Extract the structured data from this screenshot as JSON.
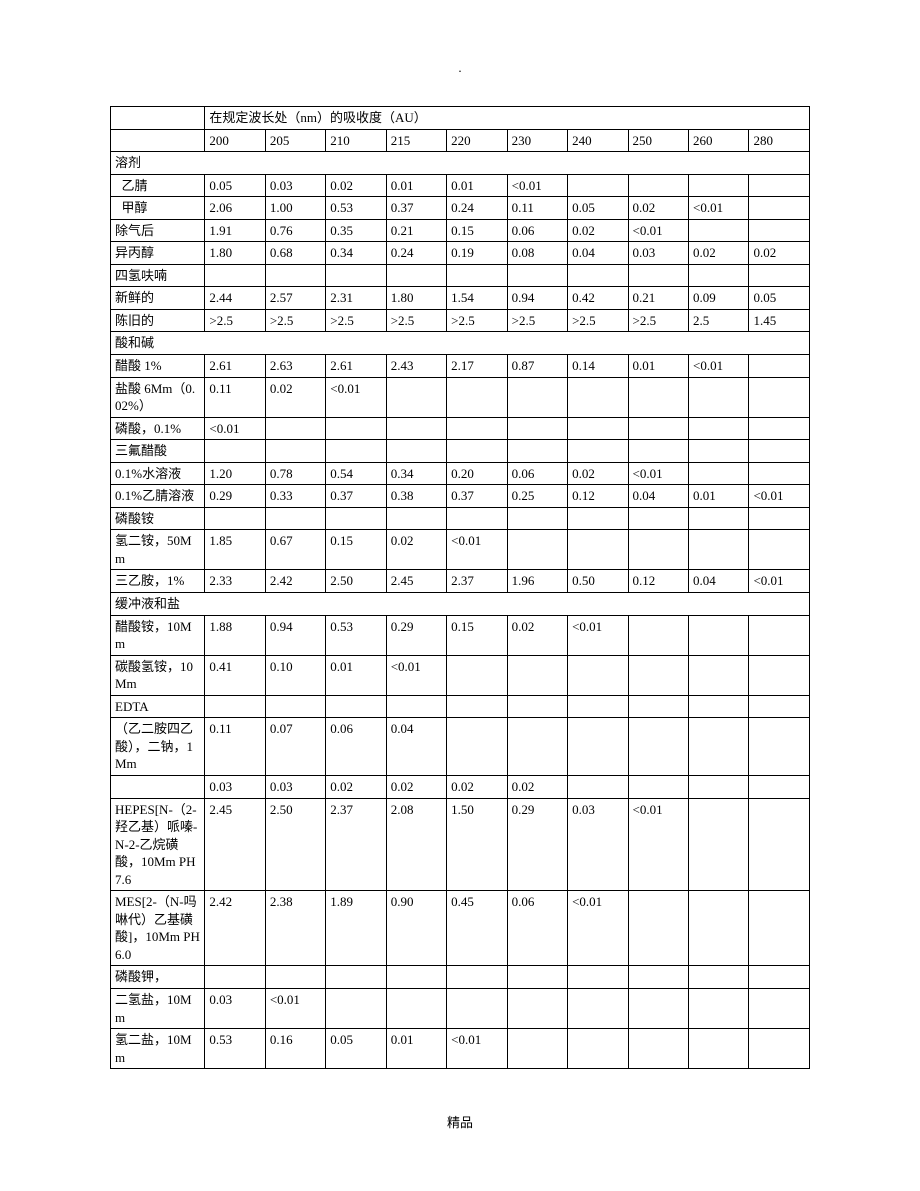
{
  "page": {
    "top_mark": ".",
    "footer": "精品"
  },
  "table": {
    "header_title": "在规定波长处（nm）的吸收度（AU）",
    "columns": [
      "200",
      "205",
      "210",
      "215",
      "220",
      "230",
      "240",
      "250",
      "260",
      "280"
    ],
    "rows": [
      {
        "type": "section",
        "label": "溶剂"
      },
      {
        "label": "乙腈",
        "indent": true,
        "cells": [
          "0.05",
          "0.03",
          "0.02",
          "0.01",
          "0.01",
          "<0.01",
          "",
          "",
          "",
          ""
        ]
      },
      {
        "label": "甲醇",
        "indent": true,
        "cells": [
          "2.06",
          "1.00",
          "0.53",
          "0.37",
          "0.24",
          "0.11",
          "0.05",
          "0.02",
          "<0.01",
          ""
        ]
      },
      {
        "label": "除气后",
        "cells": [
          "1.91",
          "0.76",
          "0.35",
          "0.21",
          "0.15",
          "0.06",
          "0.02",
          "<0.01",
          "",
          ""
        ]
      },
      {
        "label": "异丙醇",
        "cells": [
          "1.80",
          "0.68",
          "0.34",
          "0.24",
          "0.19",
          "0.08",
          "0.04",
          "0.03",
          "0.02",
          "0.02"
        ]
      },
      {
        "label": "四氢呋喃",
        "cells": [
          "",
          "",
          "",
          "",
          "",
          "",
          "",
          "",
          "",
          ""
        ]
      },
      {
        "label": "新鲜的",
        "cells": [
          "2.44",
          "2.57",
          "2.31",
          "1.80",
          "1.54",
          "0.94",
          "0.42",
          "0.21",
          "0.09",
          "0.05"
        ]
      },
      {
        "label": "陈旧的",
        "cells": [
          ">2.5",
          ">2.5",
          ">2.5",
          ">2.5",
          ">2.5",
          ">2.5",
          ">2.5",
          ">2.5",
          "2.5",
          "1.45"
        ]
      },
      {
        "type": "section",
        "label": "酸和碱"
      },
      {
        "label": "醋酸 1%",
        "cells": [
          "2.61",
          "2.63",
          "2.61",
          "2.43",
          "2.17",
          "0.87",
          "0.14",
          "0.01",
          "<0.01",
          ""
        ]
      },
      {
        "label": "盐酸 6Mm（0.02%）",
        "cells": [
          "0.11",
          "0.02",
          "<0.01",
          "",
          "",
          "",
          "",
          "",
          "",
          ""
        ]
      },
      {
        "label": "磷酸，0.1%",
        "cells": [
          "<0.01",
          "",
          "",
          "",
          "",
          "",
          "",
          "",
          "",
          ""
        ]
      },
      {
        "label": "三氟醋酸",
        "cells": [
          "",
          "",
          "",
          "",
          "",
          "",
          "",
          "",
          "",
          ""
        ]
      },
      {
        "label": "0.1%水溶液",
        "cells": [
          "1.20",
          "0.78",
          "0.54",
          "0.34",
          "0.20",
          "0.06",
          "0.02",
          "<0.01",
          "",
          ""
        ]
      },
      {
        "label": "0.1%乙腈溶液",
        "cells": [
          "0.29",
          "0.33",
          "0.37",
          "0.38",
          "0.37",
          "0.25",
          "0.12",
          "0.04",
          "0.01",
          "<0.01"
        ]
      },
      {
        "label": "磷酸铵",
        "cells": [
          "",
          "",
          "",
          "",
          "",
          "",
          "",
          "",
          "",
          ""
        ]
      },
      {
        "label": "氢二铵，50Mm",
        "cells": [
          "1.85",
          "0.67",
          "0.15",
          "0.02",
          "<0.01",
          "",
          "",
          "",
          "",
          ""
        ]
      },
      {
        "label": "三乙胺，1%",
        "cells": [
          "2.33",
          "2.42",
          "2.50",
          "2.45",
          "2.37",
          "1.96",
          "0.50",
          "0.12",
          "0.04",
          "<0.01"
        ]
      },
      {
        "type": "section",
        "label": "缓冲液和盐"
      },
      {
        "label": "醋酸铵，10Mm",
        "cells": [
          "1.88",
          "0.94",
          "0.53",
          "0.29",
          "0.15",
          "0.02",
          "<0.01",
          "",
          "",
          ""
        ]
      },
      {
        "label": "碳酸氢铵，10Mm",
        "cells": [
          "0.41",
          "0.10",
          "0.01",
          "<0.01",
          "",
          "",
          "",
          "",
          "",
          ""
        ]
      },
      {
        "label": "EDTA",
        "cells": [
          "",
          "",
          "",
          "",
          "",
          "",
          "",
          "",
          "",
          ""
        ]
      },
      {
        "label": "（乙二胺四乙酸），二钠，1 Mm",
        "cells": [
          "0.11",
          "0.07",
          "0.06",
          "0.04",
          "",
          "",
          "",
          "",
          "",
          ""
        ]
      },
      {
        "label": "",
        "cells": [
          "0.03",
          "0.03",
          "0.02",
          "0.02",
          "0.02",
          "0.02",
          "",
          "",
          "",
          ""
        ]
      },
      {
        "label": "HEPES[N-（2-羟乙基）哌嗪-N-2-乙烷磺酸，10Mm PH7.6",
        "cells": [
          "2.45",
          "2.50",
          "2.37",
          "2.08",
          "1.50",
          "0.29",
          "0.03",
          "<0.01",
          "",
          ""
        ]
      },
      {
        "label": "MES[2-（N-吗啉代）乙基磺酸]，10Mm PH6.0",
        "cells": [
          "2.42",
          "2.38",
          "1.89",
          "0.90",
          "0.45",
          "0.06",
          "<0.01",
          "",
          "",
          ""
        ]
      },
      {
        "label": "磷酸钾，",
        "cells": [
          "",
          "",
          "",
          "",
          "",
          "",
          "",
          "",
          "",
          ""
        ]
      },
      {
        "label": "二氢盐，10Mm",
        "cells": [
          "0.03",
          "<0.01",
          "",
          "",
          "",
          "",
          "",
          "",
          "",
          ""
        ]
      },
      {
        "label": "氢二盐，10Mm",
        "cells": [
          "0.53",
          "0.16",
          "0.05",
          "0.01",
          "<0.01",
          "",
          "",
          "",
          "",
          ""
        ]
      }
    ]
  }
}
